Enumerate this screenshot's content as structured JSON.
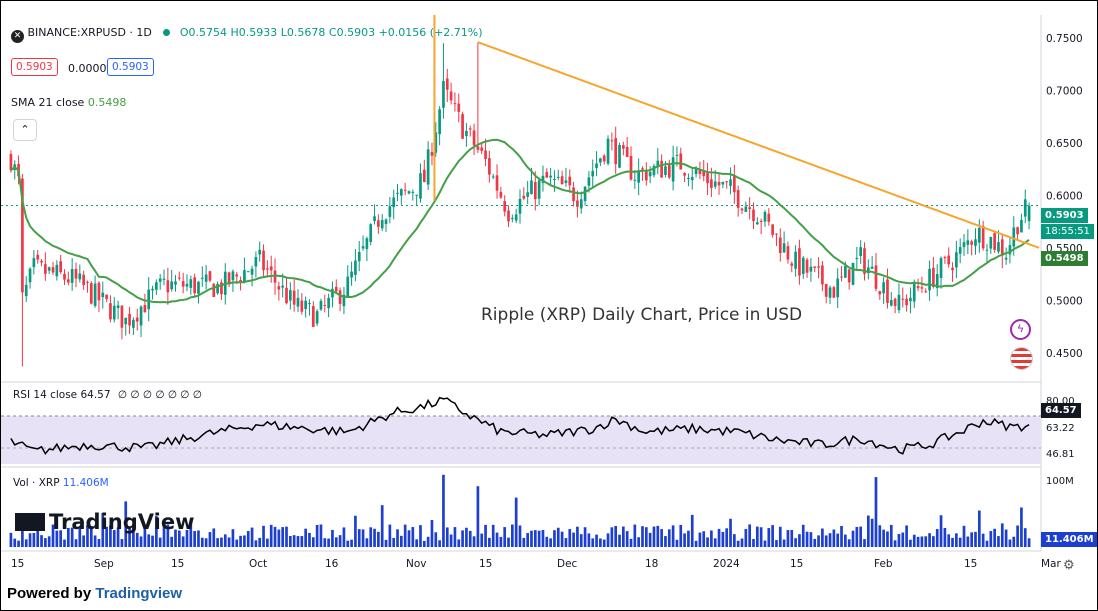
{
  "header": {
    "symbol": "BINANCE:XRPUSD · 1D",
    "ohlc": "O0.5754 H0.5933 L0.5678 C0.5903 +0.0156 (+2.71%)",
    "bid": "0.5903",
    "spread": "0.0000",
    "ask": "0.5903",
    "sma_label": "SMA 21 close",
    "sma_value": "0.5498"
  },
  "annotation": "Ripple (XRP) Daily Chart, Price in USD",
  "rsi": {
    "label": "RSI 14 close",
    "value": "64.57",
    "extra": "∅ ∅ ∅ ∅ ∅ ∅ ∅"
  },
  "volume": {
    "label": "Vol · XRP",
    "value": "11.406M"
  },
  "watermark": "TradingView",
  "footer": {
    "prefix": "Powered by",
    "brand": "Tradingview"
  },
  "tags": {
    "price": "0.5903",
    "countdown": "18:55:51",
    "sma": "0.5498",
    "rsi": "64.57",
    "vol": "11.406M"
  },
  "colors": {
    "up": "#089981",
    "down": "#f23645",
    "sma": "#43a047",
    "trend": "#f7a530",
    "rsi_line": "#000000",
    "rsi_band": "#e8e2f7",
    "volume": "#1c3fd0"
  },
  "chart_data": {
    "type": "candlestick",
    "price_axis": {
      "ticks": [
        0.45,
        0.5,
        0.55,
        0.6,
        0.65,
        0.7,
        0.75
      ],
      "tick_labels": [
        "0.4500",
        "0.5000",
        "0.5500",
        "0.6000",
        "0.6500",
        "0.7000",
        "0.7500"
      ],
      "ylim": [
        0.425,
        0.77
      ]
    },
    "rsi_axis": {
      "tick_labels": [
        "80.00",
        "63.22",
        "46.81"
      ],
      "ticks": [
        80,
        63.22,
        46.81
      ]
    },
    "volume_axis": {
      "tick_labels": [
        "100M"
      ]
    },
    "x_tick_labels": [
      "15",
      "Sep",
      "15",
      "Oct",
      "16",
      "Nov",
      "15",
      "Dec",
      "18",
      "2024",
      "15",
      "Feb",
      "15",
      "Mar"
    ],
    "current": {
      "open": 0.5754,
      "high": 0.5933,
      "low": 0.5678,
      "close": 0.5903,
      "sma21": 0.5498,
      "rsi": 64.57,
      "volume_m": 11.406
    },
    "anchors": [
      [
        0,
        0.636
      ],
      [
        2,
        0.612
      ],
      [
        3,
        0.5
      ],
      [
        6,
        0.53
      ],
      [
        16,
        0.52
      ],
      [
        20,
        0.51
      ],
      [
        30,
        0.48
      ],
      [
        40,
        0.515
      ],
      [
        55,
        0.513
      ],
      [
        65,
        0.537
      ],
      [
        74,
        0.495
      ],
      [
        80,
        0.485
      ],
      [
        88,
        0.515
      ],
      [
        97,
        0.585
      ],
      [
        108,
        0.615
      ],
      [
        113,
        0.7
      ],
      [
        118,
        0.665
      ],
      [
        124,
        0.632
      ],
      [
        130,
        0.585
      ],
      [
        140,
        0.615
      ],
      [
        148,
        0.6
      ],
      [
        156,
        0.65
      ],
      [
        163,
        0.62
      ],
      [
        175,
        0.63
      ],
      [
        182,
        0.615
      ],
      [
        188,
        0.605
      ],
      [
        196,
        0.58
      ],
      [
        205,
        0.535
      ],
      [
        215,
        0.51
      ],
      [
        222,
        0.54
      ],
      [
        232,
        0.495
      ],
      [
        240,
        0.52
      ],
      [
        248,
        0.545
      ],
      [
        252,
        0.565
      ],
      [
        256,
        0.558
      ],
      [
        260,
        0.546
      ],
      [
        263,
        0.575
      ],
      [
        266,
        0.5903
      ]
    ],
    "trendline": {
      "from": [
        122,
        0.746
      ],
      "to": [
        268,
        0.55
      ]
    },
    "rsi_anchors": [
      [
        0,
        54
      ],
      [
        6,
        48
      ],
      [
        20,
        52
      ],
      [
        35,
        50
      ],
      [
        50,
        58
      ],
      [
        65,
        65
      ],
      [
        78,
        62
      ],
      [
        88,
        60
      ],
      [
        100,
        72
      ],
      [
        108,
        76
      ],
      [
        113,
        80
      ],
      [
        120,
        70
      ],
      [
        128,
        60
      ],
      [
        140,
        58
      ],
      [
        152,
        62
      ],
      [
        158,
        68
      ],
      [
        166,
        60
      ],
      [
        178,
        62
      ],
      [
        190,
        60
      ],
      [
        200,
        55
      ],
      [
        212,
        52
      ],
      [
        222,
        56
      ],
      [
        232,
        49
      ],
      [
        240,
        52
      ],
      [
        248,
        60
      ],
      [
        254,
        67
      ],
      [
        262,
        63
      ],
      [
        266,
        64.57
      ]
    ],
    "volume_spikes": [
      [
        113,
        95
      ],
      [
        122,
        80
      ],
      [
        226,
        92
      ],
      [
        132,
        65
      ],
      [
        97,
        55
      ],
      [
        30,
        60
      ],
      [
        253,
        48
      ],
      [
        264,
        52
      ]
    ]
  }
}
